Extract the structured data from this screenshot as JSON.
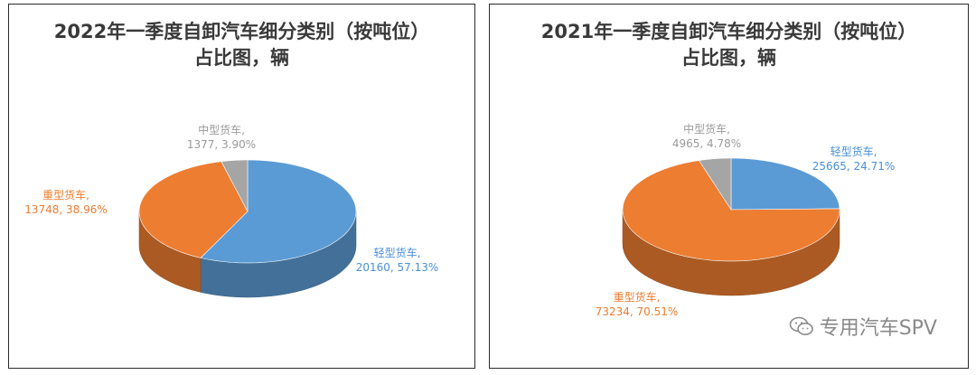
{
  "colors": {
    "light": "#5b9bd5",
    "heavy": "#ed7d31",
    "medium": "#a5a5a5"
  },
  "chart_data": [
    {
      "type": "pie",
      "title_lines": [
        "2022年一季度自卸汽车细分类别（按吨位）",
        "占比图，辆"
      ],
      "slices": [
        {
          "name": "轻型货车",
          "value": 20160,
          "percent": 57.13,
          "label_name": "轻型货车,",
          "label_value": "20160, 57.13%"
        },
        {
          "name": "重型货车",
          "value": 13748,
          "percent": 38.96,
          "label_name": "重型货车,",
          "label_value": "13748, 38.96%"
        },
        {
          "name": "中型货车",
          "value": 1377,
          "percent": 3.9,
          "label_name": "中型货车,",
          "label_value": "1377, 3.90%"
        }
      ]
    },
    {
      "type": "pie",
      "title_lines": [
        "2021年一季度自卸汽车细分类别（按吨位）",
        "占比图，辆"
      ],
      "slices": [
        {
          "name": "轻型货车",
          "value": 25665,
          "percent": 24.71,
          "label_name": "轻型货车,",
          "label_value": "25665, 24.71%"
        },
        {
          "name": "重型货车",
          "value": 73234,
          "percent": 70.51,
          "label_name": "重型货车,",
          "label_value": "73234, 70.51%"
        },
        {
          "name": "中型货车",
          "value": 4965,
          "percent": 4.78,
          "label_name": "中型货车,",
          "label_value": "4965, 4.78%"
        }
      ]
    }
  ],
  "watermark": {
    "text": "专用汽车SPV",
    "icon": "wechat-icon"
  }
}
